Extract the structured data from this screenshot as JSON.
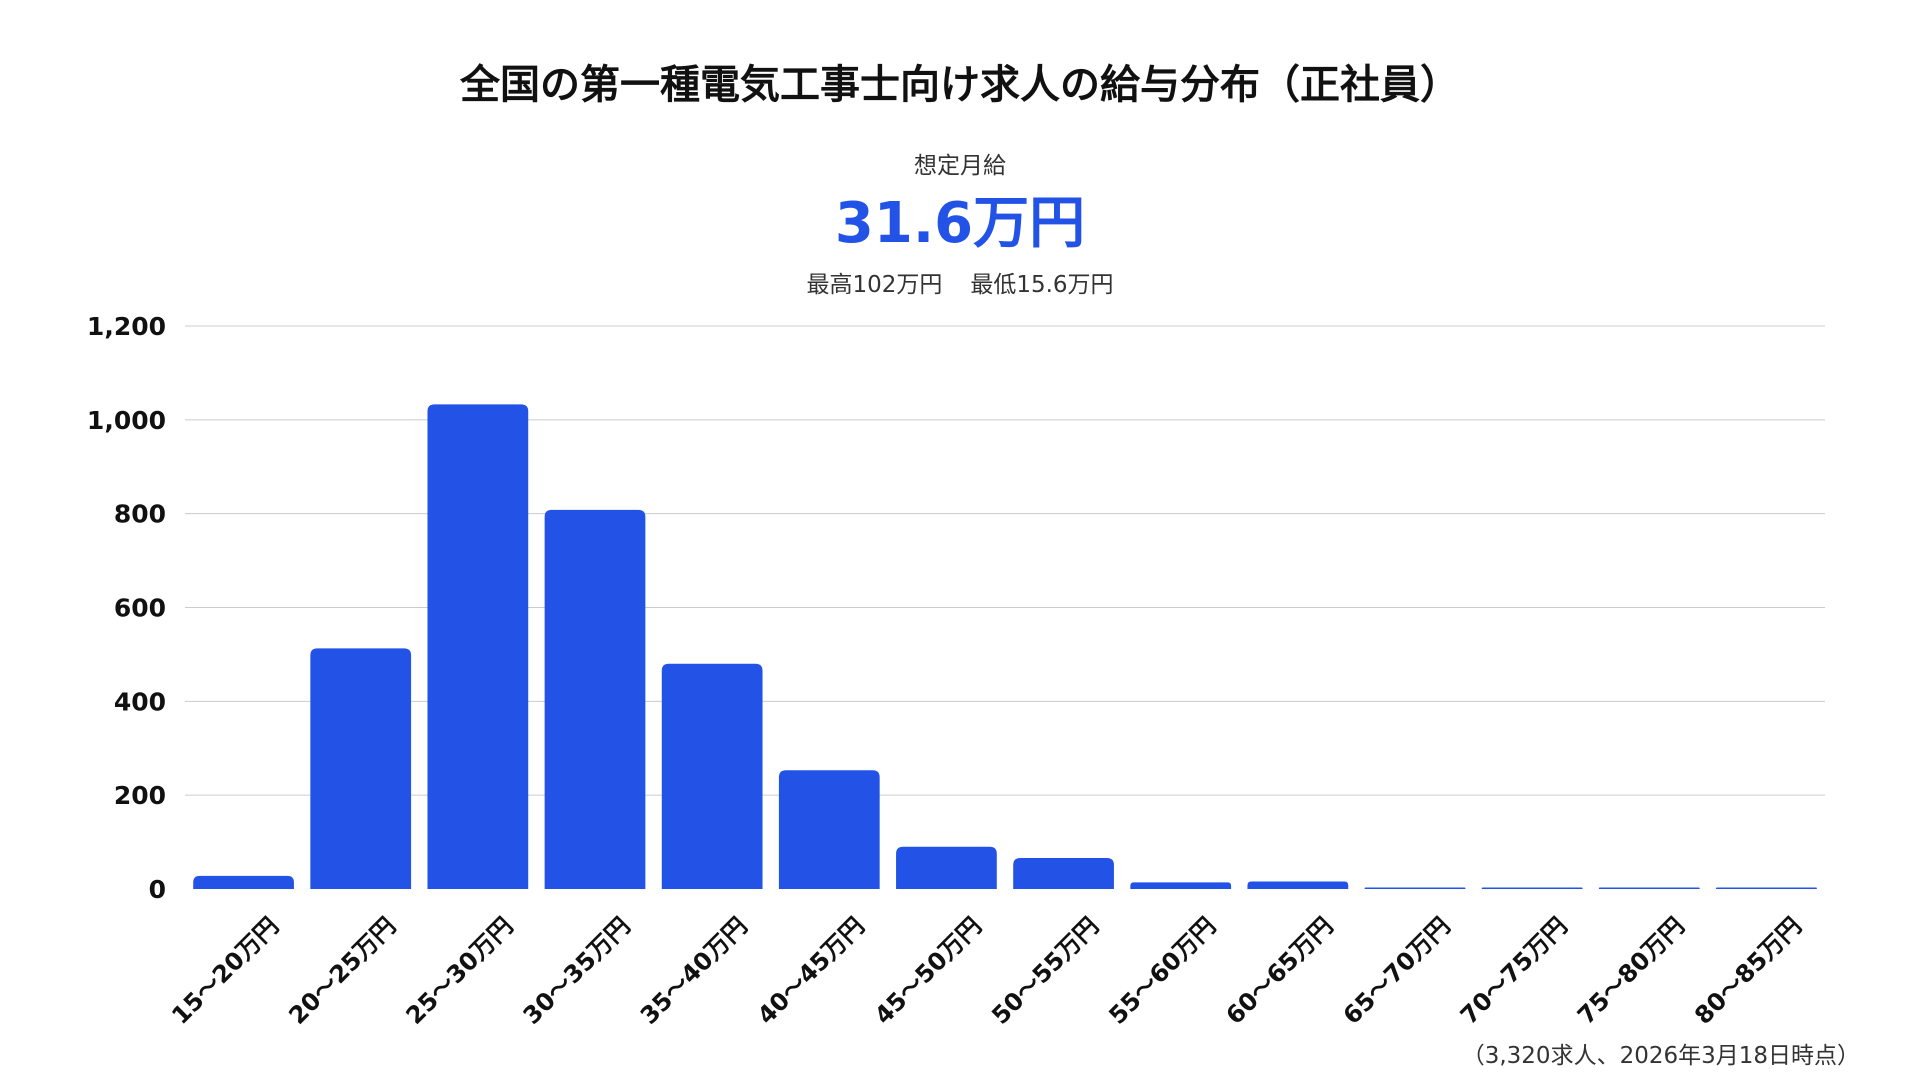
{
  "header": {
    "title": "全国の第一種電気工事士向け求人の給与分布（正社員）",
    "summary_label": "想定月給",
    "summary_value": "31.6万円",
    "max_text": "最高102万円",
    "min_text": "最低15.6万円"
  },
  "footnote": "（3,320求人、2026年3月18日時点）",
  "colors": {
    "bar": "#2253e6",
    "accent_text": "#2253e6",
    "grid": "#cccccc"
  },
  "chart_data": {
    "type": "bar",
    "title": "全国の第一種電気工事士向け求人の給与分布（正社員）",
    "xlabel": "",
    "ylabel": "",
    "ylim": [
      0,
      1200
    ],
    "yticks": [
      0,
      200,
      400,
      600,
      800,
      1000,
      1200
    ],
    "ytick_labels": [
      "0",
      "200",
      "400",
      "600",
      "800",
      "1,000",
      "1,200"
    ],
    "grid": true,
    "legend": "none",
    "categories": [
      "15〜20万円",
      "20〜25万円",
      "25〜30万円",
      "30〜35万円",
      "35〜40万円",
      "40〜45万円",
      "45〜50万円",
      "50〜55万円",
      "55〜60万円",
      "60〜65万円",
      "65〜70万円",
      "70〜75万円",
      "75〜80万円",
      "80〜85万円"
    ],
    "values": [
      28,
      513,
      1033,
      808,
      480,
      253,
      90,
      66,
      14,
      16,
      3,
      0,
      0,
      1
    ]
  }
}
